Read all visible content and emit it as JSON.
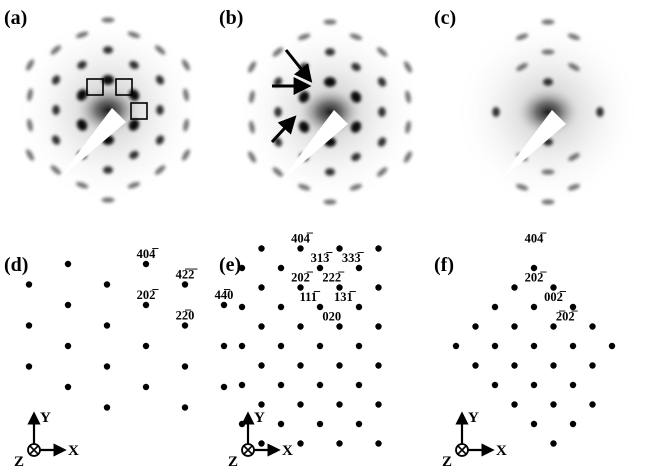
{
  "panels": [
    {
      "id": "a",
      "label": "(a)",
      "kind": "pattern",
      "annotations": "boxes",
      "blobs": [
        {
          "r": 0.0,
          "ang": 0,
          "s": 0
        },
        {
          "r": 1.0,
          "ang": 90,
          "s": 3
        },
        {
          "r": 1.0,
          "ang": 150,
          "s": 3
        },
        {
          "r": 1.0,
          "ang": 210,
          "s": 3
        },
        {
          "r": 1.0,
          "ang": 270,
          "s": 3
        },
        {
          "r": 1.0,
          "ang": 330,
          "s": 3
        },
        {
          "r": 1.0,
          "ang": 30,
          "s": 3
        },
        {
          "r": 1.732,
          "ang": 0,
          "s": 2
        },
        {
          "r": 1.732,
          "ang": 60,
          "s": 2
        },
        {
          "r": 1.732,
          "ang": 120,
          "s": 2
        },
        {
          "r": 1.732,
          "ang": 180,
          "s": 2
        },
        {
          "r": 1.732,
          "ang": 240,
          "s": 2
        },
        {
          "r": 1.732,
          "ang": 300,
          "s": 2
        },
        {
          "r": 2.0,
          "ang": 90,
          "s": 2
        },
        {
          "r": 2.0,
          "ang": 150,
          "s": 2
        },
        {
          "r": 2.0,
          "ang": 210,
          "s": 2
        },
        {
          "r": 2.0,
          "ang": 270,
          "s": 2
        },
        {
          "r": 2.0,
          "ang": 330,
          "s": 2
        },
        {
          "r": 2.0,
          "ang": 30,
          "s": 2
        },
        {
          "r": 2.65,
          "ang": 11,
          "s": 1
        },
        {
          "r": 2.65,
          "ang": 49,
          "s": 1
        },
        {
          "r": 2.65,
          "ang": 71,
          "s": 1
        },
        {
          "r": 2.65,
          "ang": 109,
          "s": 1
        },
        {
          "r": 2.65,
          "ang": 131,
          "s": 1
        },
        {
          "r": 2.65,
          "ang": 169,
          "s": 1
        },
        {
          "r": 2.65,
          "ang": 191,
          "s": 1
        },
        {
          "r": 2.65,
          "ang": 229,
          "s": 1
        },
        {
          "r": 2.65,
          "ang": 251,
          "s": 1
        },
        {
          "r": 2.65,
          "ang": 289,
          "s": 1
        },
        {
          "r": 2.65,
          "ang": 311,
          "s": 1
        },
        {
          "r": 2.65,
          "ang": 349,
          "s": 1
        },
        {
          "r": 3.0,
          "ang": 90,
          "s": 1
        },
        {
          "r": 3.0,
          "ang": 150,
          "s": 1
        },
        {
          "r": 3.0,
          "ang": 210,
          "s": 1
        },
        {
          "r": 3.0,
          "ang": 270,
          "s": 1
        },
        {
          "r": 3.0,
          "ang": 330,
          "s": 1
        },
        {
          "r": 3.0,
          "ang": 30,
          "s": 1
        }
      ]
    },
    {
      "id": "b",
      "label": "(b)",
      "kind": "pattern",
      "annotations": "arrows",
      "blobs": [
        {
          "r": 0.0,
          "ang": 0,
          "s": 0
        },
        {
          "r": 1.0,
          "ang": 90,
          "s": 3
        },
        {
          "r": 1.0,
          "ang": 150,
          "s": 3
        },
        {
          "r": 1.0,
          "ang": 210,
          "s": 3
        },
        {
          "r": 1.0,
          "ang": 270,
          "s": 3
        },
        {
          "r": 1.0,
          "ang": 330,
          "s": 3
        },
        {
          "r": 1.0,
          "ang": 30,
          "s": 3
        },
        {
          "r": 1.732,
          "ang": 0,
          "s": 2
        },
        {
          "r": 1.732,
          "ang": 60,
          "s": 2
        },
        {
          "r": 1.732,
          "ang": 120,
          "s": 2
        },
        {
          "r": 1.732,
          "ang": 180,
          "s": 2
        },
        {
          "r": 1.732,
          "ang": 240,
          "s": 2
        },
        {
          "r": 1.732,
          "ang": 300,
          "s": 2
        },
        {
          "r": 2.0,
          "ang": 90,
          "s": 2
        },
        {
          "r": 2.0,
          "ang": 150,
          "s": 2
        },
        {
          "r": 2.0,
          "ang": 210,
          "s": 2
        },
        {
          "r": 2.0,
          "ang": 270,
          "s": 2
        },
        {
          "r": 2.0,
          "ang": 330,
          "s": 2
        },
        {
          "r": 2.0,
          "ang": 30,
          "s": 2
        },
        {
          "r": 2.65,
          "ang": 11,
          "s": 1
        },
        {
          "r": 2.65,
          "ang": 49,
          "s": 1
        },
        {
          "r": 2.65,
          "ang": 71,
          "s": 1
        },
        {
          "r": 2.65,
          "ang": 109,
          "s": 1
        },
        {
          "r": 2.65,
          "ang": 131,
          "s": 1
        },
        {
          "r": 2.65,
          "ang": 169,
          "s": 1
        },
        {
          "r": 2.65,
          "ang": 191,
          "s": 1
        },
        {
          "r": 2.65,
          "ang": 229,
          "s": 1
        },
        {
          "r": 2.65,
          "ang": 251,
          "s": 1
        },
        {
          "r": 2.65,
          "ang": 289,
          "s": 1
        },
        {
          "r": 2.65,
          "ang": 311,
          "s": 1
        },
        {
          "r": 2.65,
          "ang": 349,
          "s": 1
        },
        {
          "r": 3.0,
          "ang": 90,
          "s": 1
        },
        {
          "r": 3.0,
          "ang": 150,
          "s": 1
        },
        {
          "r": 3.0,
          "ang": 210,
          "s": 1
        },
        {
          "r": 3.0,
          "ang": 270,
          "s": 1
        },
        {
          "r": 3.0,
          "ang": 330,
          "s": 1
        },
        {
          "r": 3.0,
          "ang": 30,
          "s": 1
        }
      ]
    },
    {
      "id": "c",
      "label": "(c)",
      "kind": "pattern",
      "annotations": "none",
      "blobs": [
        {
          "r": 0.0,
          "ang": 0,
          "s": 0
        },
        {
          "r": 1.0,
          "ang": 90,
          "s": 2
        },
        {
          "r": 1.0,
          "ang": 270,
          "s": 2
        },
        {
          "r": 1.732,
          "ang": 0,
          "s": 2
        },
        {
          "r": 1.732,
          "ang": 180,
          "s": 2
        },
        {
          "r": 1.732,
          "ang": 60,
          "s": 1
        },
        {
          "r": 1.732,
          "ang": 120,
          "s": 1
        },
        {
          "r": 1.732,
          "ang": 240,
          "s": 1
        },
        {
          "r": 1.732,
          "ang": 300,
          "s": 1
        },
        {
          "r": 2.0,
          "ang": 90,
          "s": 1
        },
        {
          "r": 2.0,
          "ang": 270,
          "s": 1
        },
        {
          "r": 2.65,
          "ang": 71,
          "s": 1
        },
        {
          "r": 2.65,
          "ang": 109,
          "s": 1
        },
        {
          "r": 2.65,
          "ang": 251,
          "s": 1
        },
        {
          "r": 2.65,
          "ang": 289,
          "s": 1
        },
        {
          "r": 3.0,
          "ang": 90,
          "s": 1
        },
        {
          "r": 3.0,
          "ang": 270,
          "s": 1
        }
      ]
    },
    {
      "id": "d",
      "label": "(d)",
      "kind": "lattice",
      "dots": [
        [
          0,
          3
        ],
        [
          0,
          1
        ],
        [
          0,
          -1
        ],
        [
          1,
          4
        ],
        [
          1,
          2
        ],
        [
          1,
          0
        ],
        [
          1,
          -2
        ],
        [
          2,
          3
        ],
        [
          2,
          1
        ],
        [
          2,
          -1
        ],
        [
          2,
          -3
        ],
        [
          3,
          4
        ],
        [
          3,
          2
        ],
        [
          3,
          0
        ],
        [
          3,
          -2
        ],
        [
          4,
          3
        ],
        [
          4,
          1
        ],
        [
          4,
          -1
        ],
        [
          4,
          -3
        ],
        [
          5,
          2
        ],
        [
          5,
          0
        ],
        [
          5,
          -2
        ]
      ],
      "miller": [
        {
          "text": "404̅",
          "h": 3,
          "k": 4
        },
        {
          "text": "42̅2̅",
          "h": 4,
          "k": 3
        },
        {
          "text": "202̅",
          "h": 3,
          "k": 2
        },
        {
          "text": "44̅0",
          "h": 5,
          "k": 2
        },
        {
          "text": "22̅0",
          "h": 4,
          "k": 1
        }
      ]
    },
    {
      "id": "e",
      "label": "(e)",
      "kind": "lattice",
      "dots": [
        [
          0,
          4
        ],
        [
          0,
          2
        ],
        [
          0,
          0
        ],
        [
          0,
          -2
        ],
        [
          0,
          -4
        ],
        [
          1,
          5
        ],
        [
          1,
          3
        ],
        [
          1,
          1
        ],
        [
          1,
          -1
        ],
        [
          1,
          -3
        ],
        [
          1,
          -5
        ],
        [
          2,
          4
        ],
        [
          2,
          2
        ],
        [
          2,
          0
        ],
        [
          2,
          -2
        ],
        [
          2,
          -4
        ],
        [
          3,
          5
        ],
        [
          3,
          3
        ],
        [
          3,
          1
        ],
        [
          3,
          -1
        ],
        [
          3,
          -3
        ],
        [
          3,
          -5
        ],
        [
          4,
          4
        ],
        [
          4,
          2
        ],
        [
          4,
          0
        ],
        [
          4,
          -2
        ],
        [
          4,
          -4
        ],
        [
          5,
          5
        ],
        [
          5,
          3
        ],
        [
          5,
          1
        ],
        [
          5,
          -1
        ],
        [
          5,
          -3
        ],
        [
          5,
          -5
        ],
        [
          6,
          4
        ],
        [
          6,
          2
        ],
        [
          6,
          0
        ],
        [
          6,
          -2
        ],
        [
          6,
          -4
        ],
        [
          7,
          5
        ],
        [
          7,
          3
        ],
        [
          7,
          1
        ],
        [
          7,
          -1
        ],
        [
          7,
          -3
        ],
        [
          7,
          -5
        ]
      ],
      "miller": [
        {
          "text": "404̅",
          "h": 3,
          "k": 5
        },
        {
          "text": "313̅",
          "h": 4,
          "k": 4
        },
        {
          "text": "333̅",
          "h": 5.6,
          "k": 4
        },
        {
          "text": "202̅",
          "h": 3,
          "k": 3
        },
        {
          "text": "222̅",
          "h": 4.6,
          "k": 3
        },
        {
          "text": "111̅",
          "h": 3.4,
          "k": 2
        },
        {
          "text": "131̅",
          "h": 5.2,
          "k": 2
        },
        {
          "text": "020",
          "h": 4.6,
          "k": 1
        }
      ]
    },
    {
      "id": "f",
      "label": "(f)",
      "kind": "lattice",
      "dots": [
        [
          0,
          0
        ],
        [
          1,
          1
        ],
        [
          1,
          -1
        ],
        [
          2,
          2
        ],
        [
          2,
          0
        ],
        [
          2,
          -2
        ],
        [
          3,
          3
        ],
        [
          3,
          1
        ],
        [
          3,
          -1
        ],
        [
          3,
          -3
        ],
        [
          4,
          4
        ],
        [
          4,
          2
        ],
        [
          4,
          0
        ],
        [
          4,
          -2
        ],
        [
          4,
          -4
        ],
        [
          5,
          3
        ],
        [
          5,
          1
        ],
        [
          5,
          -1
        ],
        [
          5,
          -3
        ],
        [
          5,
          -5
        ],
        [
          6,
          2
        ],
        [
          6,
          0
        ],
        [
          6,
          -2
        ],
        [
          6,
          -4
        ],
        [
          7,
          1
        ],
        [
          7,
          -1
        ],
        [
          7,
          -3
        ],
        [
          8,
          0
        ]
      ],
      "miller": [
        {
          "text": "404̅",
          "h": 4,
          "k": 5
        },
        {
          "text": "202̅",
          "h": 4,
          "k": 3
        },
        {
          "text": "002̅",
          "h": 5,
          "k": 2
        },
        {
          "text": "2̅02̅",
          "h": 5.6,
          "k": 1
        }
      ]
    }
  ],
  "axes": {
    "x": "X",
    "y": "Y",
    "z": "Z"
  }
}
